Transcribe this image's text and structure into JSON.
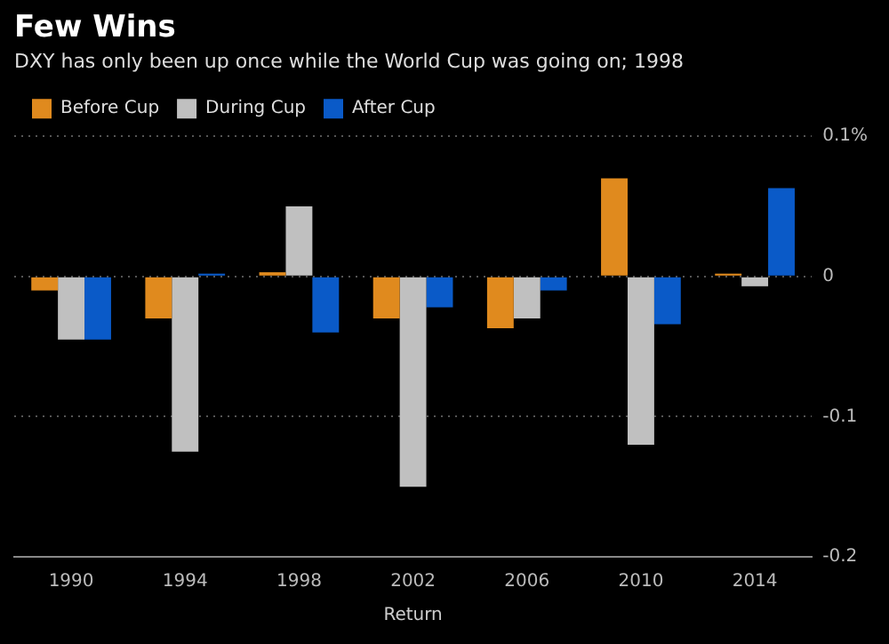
{
  "chart_data": {
    "type": "bar",
    "title": "Few Wins",
    "subtitle": "DXY has only been up once while the World Cup was going on; 1998",
    "xlabel": "Return",
    "categories": [
      "1990",
      "1994",
      "1998",
      "2002",
      "2006",
      "2010",
      "2014"
    ],
    "series": [
      {
        "name": "Before Cup",
        "color": "#e08a1e",
        "values": [
          -0.01,
          -0.03,
          0.003,
          -0.03,
          -0.037,
          0.07,
          0.002
        ]
      },
      {
        "name": "During Cup",
        "color": "#c0c0c0",
        "values": [
          -0.045,
          -0.125,
          0.05,
          -0.15,
          -0.03,
          -0.12,
          -0.007
        ]
      },
      {
        "name": "After Cup",
        "color": "#0a5ac8",
        "values": [
          -0.045,
          0.002,
          -0.04,
          -0.022,
          -0.01,
          -0.034,
          0.063
        ]
      }
    ],
    "ylim": [
      -0.2,
      0.1
    ],
    "yticks": [
      {
        "value": 0.1,
        "label": "0.1%"
      },
      0,
      -0.1,
      -0.2
    ],
    "grid": "y",
    "legend": "top left"
  }
}
